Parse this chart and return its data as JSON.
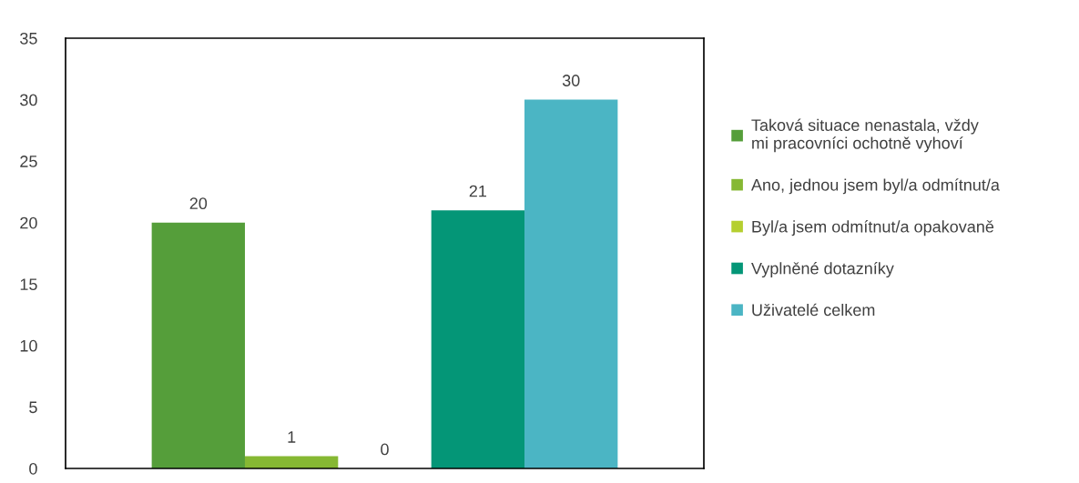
{
  "chart_data": {
    "type": "bar",
    "categories": [
      null
    ],
    "series": [
      {
        "name": "Taková situace nenastala, vždy mi pracovníci ochotně vyhoví",
        "color": "#559e3a",
        "values": [
          20
        ]
      },
      {
        "name": "Ano, jednou jsem byl/a odmítnut/a",
        "color": "#86b833",
        "values": [
          1
        ]
      },
      {
        "name": "Byl/a jsem odmítnut/a opakovaně",
        "color": "#b5cf2f",
        "values": [
          0
        ]
      },
      {
        "name": "Vyplněné dotazníky",
        "color": "#049677",
        "values": [
          21
        ]
      },
      {
        "name": "Uživatelé celkem",
        "color": "#4bb5c4",
        "values": [
          30
        ]
      }
    ],
    "ylim": [
      0,
      35
    ],
    "yticks": [
      0,
      5,
      10,
      15,
      20,
      25,
      30,
      35
    ],
    "grid": false,
    "legend": "right",
    "data_labels": true
  }
}
